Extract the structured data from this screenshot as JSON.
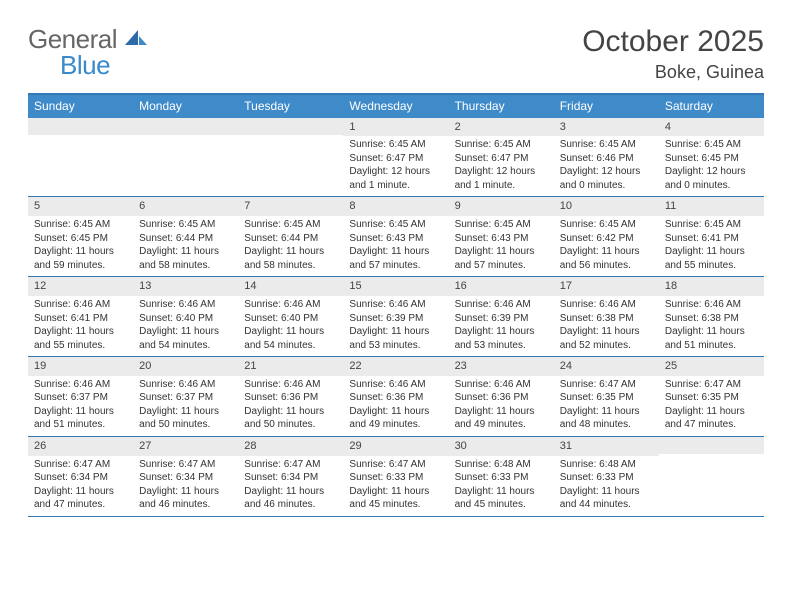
{
  "logo": {
    "text_left": "General",
    "text_right": "Blue"
  },
  "header": {
    "month_year": "October 2025",
    "location": "Boke, Guinea"
  },
  "colors": {
    "header_bar": "#3f8ac9",
    "rule": "#3478b5",
    "daynum_bg": "#ebebeb",
    "text": "#333333",
    "logo_gray": "#666666",
    "logo_blue": "#3a8acb"
  },
  "day_labels": [
    "Sunday",
    "Monday",
    "Tuesday",
    "Wednesday",
    "Thursday",
    "Friday",
    "Saturday"
  ],
  "weeks": [
    [
      {
        "n": "",
        "lines": []
      },
      {
        "n": "",
        "lines": []
      },
      {
        "n": "",
        "lines": []
      },
      {
        "n": "1",
        "lines": [
          "Sunrise: 6:45 AM",
          "Sunset: 6:47 PM",
          "Daylight: 12 hours and 1 minute."
        ]
      },
      {
        "n": "2",
        "lines": [
          "Sunrise: 6:45 AM",
          "Sunset: 6:47 PM",
          "Daylight: 12 hours and 1 minute."
        ]
      },
      {
        "n": "3",
        "lines": [
          "Sunrise: 6:45 AM",
          "Sunset: 6:46 PM",
          "Daylight: 12 hours and 0 minutes."
        ]
      },
      {
        "n": "4",
        "lines": [
          "Sunrise: 6:45 AM",
          "Sunset: 6:45 PM",
          "Daylight: 12 hours and 0 minutes."
        ]
      }
    ],
    [
      {
        "n": "5",
        "lines": [
          "Sunrise: 6:45 AM",
          "Sunset: 6:45 PM",
          "Daylight: 11 hours and 59 minutes."
        ]
      },
      {
        "n": "6",
        "lines": [
          "Sunrise: 6:45 AM",
          "Sunset: 6:44 PM",
          "Daylight: 11 hours and 58 minutes."
        ]
      },
      {
        "n": "7",
        "lines": [
          "Sunrise: 6:45 AM",
          "Sunset: 6:44 PM",
          "Daylight: 11 hours and 58 minutes."
        ]
      },
      {
        "n": "8",
        "lines": [
          "Sunrise: 6:45 AM",
          "Sunset: 6:43 PM",
          "Daylight: 11 hours and 57 minutes."
        ]
      },
      {
        "n": "9",
        "lines": [
          "Sunrise: 6:45 AM",
          "Sunset: 6:43 PM",
          "Daylight: 11 hours and 57 minutes."
        ]
      },
      {
        "n": "10",
        "lines": [
          "Sunrise: 6:45 AM",
          "Sunset: 6:42 PM",
          "Daylight: 11 hours and 56 minutes."
        ]
      },
      {
        "n": "11",
        "lines": [
          "Sunrise: 6:45 AM",
          "Sunset: 6:41 PM",
          "Daylight: 11 hours and 55 minutes."
        ]
      }
    ],
    [
      {
        "n": "12",
        "lines": [
          "Sunrise: 6:46 AM",
          "Sunset: 6:41 PM",
          "Daylight: 11 hours and 55 minutes."
        ]
      },
      {
        "n": "13",
        "lines": [
          "Sunrise: 6:46 AM",
          "Sunset: 6:40 PM",
          "Daylight: 11 hours and 54 minutes."
        ]
      },
      {
        "n": "14",
        "lines": [
          "Sunrise: 6:46 AM",
          "Sunset: 6:40 PM",
          "Daylight: 11 hours and 54 minutes."
        ]
      },
      {
        "n": "15",
        "lines": [
          "Sunrise: 6:46 AM",
          "Sunset: 6:39 PM",
          "Daylight: 11 hours and 53 minutes."
        ]
      },
      {
        "n": "16",
        "lines": [
          "Sunrise: 6:46 AM",
          "Sunset: 6:39 PM",
          "Daylight: 11 hours and 53 minutes."
        ]
      },
      {
        "n": "17",
        "lines": [
          "Sunrise: 6:46 AM",
          "Sunset: 6:38 PM",
          "Daylight: 11 hours and 52 minutes."
        ]
      },
      {
        "n": "18",
        "lines": [
          "Sunrise: 6:46 AM",
          "Sunset: 6:38 PM",
          "Daylight: 11 hours and 51 minutes."
        ]
      }
    ],
    [
      {
        "n": "19",
        "lines": [
          "Sunrise: 6:46 AM",
          "Sunset: 6:37 PM",
          "Daylight: 11 hours and 51 minutes."
        ]
      },
      {
        "n": "20",
        "lines": [
          "Sunrise: 6:46 AM",
          "Sunset: 6:37 PM",
          "Daylight: 11 hours and 50 minutes."
        ]
      },
      {
        "n": "21",
        "lines": [
          "Sunrise: 6:46 AM",
          "Sunset: 6:36 PM",
          "Daylight: 11 hours and 50 minutes."
        ]
      },
      {
        "n": "22",
        "lines": [
          "Sunrise: 6:46 AM",
          "Sunset: 6:36 PM",
          "Daylight: 11 hours and 49 minutes."
        ]
      },
      {
        "n": "23",
        "lines": [
          "Sunrise: 6:46 AM",
          "Sunset: 6:36 PM",
          "Daylight: 11 hours and 49 minutes."
        ]
      },
      {
        "n": "24",
        "lines": [
          "Sunrise: 6:47 AM",
          "Sunset: 6:35 PM",
          "Daylight: 11 hours and 48 minutes."
        ]
      },
      {
        "n": "25",
        "lines": [
          "Sunrise: 6:47 AM",
          "Sunset: 6:35 PM",
          "Daylight: 11 hours and 47 minutes."
        ]
      }
    ],
    [
      {
        "n": "26",
        "lines": [
          "Sunrise: 6:47 AM",
          "Sunset: 6:34 PM",
          "Daylight: 11 hours and 47 minutes."
        ]
      },
      {
        "n": "27",
        "lines": [
          "Sunrise: 6:47 AM",
          "Sunset: 6:34 PM",
          "Daylight: 11 hours and 46 minutes."
        ]
      },
      {
        "n": "28",
        "lines": [
          "Sunrise: 6:47 AM",
          "Sunset: 6:34 PM",
          "Daylight: 11 hours and 46 minutes."
        ]
      },
      {
        "n": "29",
        "lines": [
          "Sunrise: 6:47 AM",
          "Sunset: 6:33 PM",
          "Daylight: 11 hours and 45 minutes."
        ]
      },
      {
        "n": "30",
        "lines": [
          "Sunrise: 6:48 AM",
          "Sunset: 6:33 PM",
          "Daylight: 11 hours and 45 minutes."
        ]
      },
      {
        "n": "31",
        "lines": [
          "Sunrise: 6:48 AM",
          "Sunset: 6:33 PM",
          "Daylight: 11 hours and 44 minutes."
        ]
      },
      {
        "n": "",
        "lines": []
      }
    ]
  ]
}
